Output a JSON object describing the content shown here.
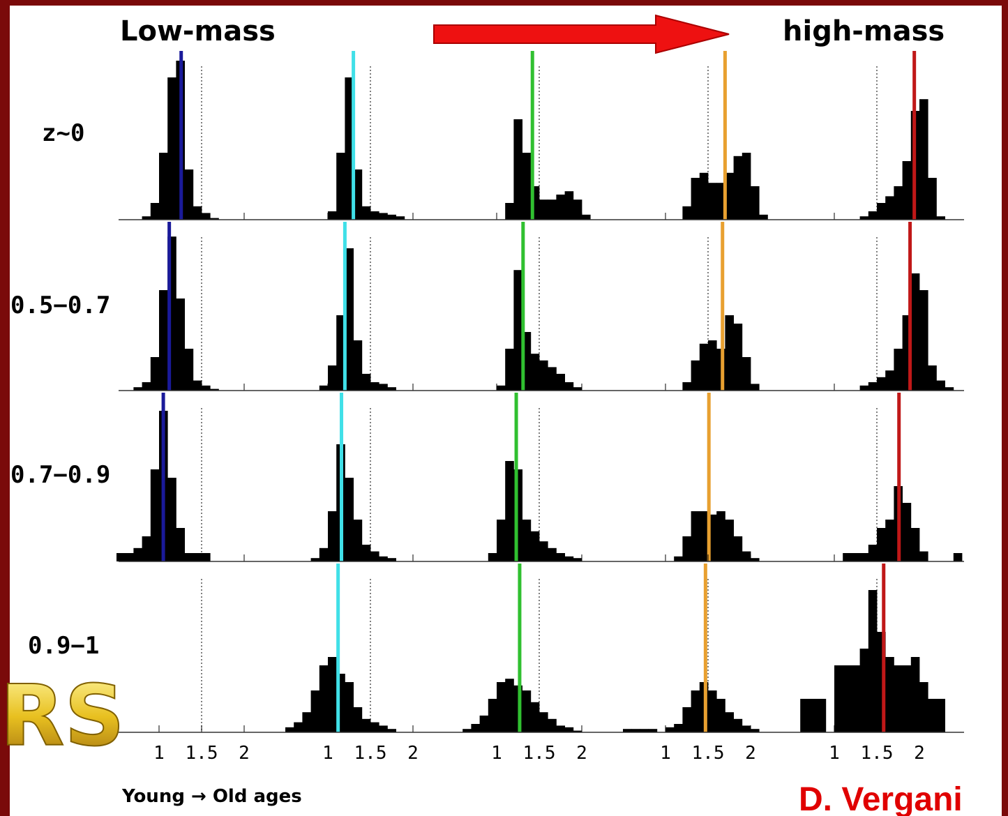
{
  "chart_data": {
    "type": "histogram",
    "left_label": "Low-mass",
    "right_label": "high-mass",
    "xlabel": "Young → Old ages",
    "credit": "D. Vergani",
    "logo": "RS",
    "row_labels": [
      "z~0",
      "0.5−0.7",
      "0.7−0.9",
      "0.9−1"
    ],
    "xlim": [
      0.5,
      2.5
    ],
    "xticks": [
      1,
      1.5,
      2
    ],
    "ylim": [
      0,
      100
    ],
    "reference_line": 1.5,
    "bar_color": "#000000",
    "bins": [
      0.5,
      0.6,
      0.7,
      0.8,
      0.9,
      1.0,
      1.1,
      1.2,
      1.3,
      1.4,
      1.5,
      1.6,
      1.7,
      1.8,
      1.9,
      2.0,
      2.1,
      2.2,
      2.3,
      2.4,
      2.5
    ],
    "columns": [
      {
        "color": "#1a1a9a",
        "medians": [
          1.26,
          1.12,
          1.05,
          null
        ],
        "histograms": [
          [
            0,
            0,
            0,
            2,
            10,
            40,
            85,
            95,
            30,
            8,
            4,
            1,
            0,
            0,
            0,
            0,
            0,
            0,
            0,
            0
          ],
          [
            0,
            0,
            2,
            5,
            20,
            60,
            92,
            55,
            25,
            6,
            3,
            1,
            0,
            0,
            0,
            0,
            0,
            0,
            0,
            0
          ],
          [
            5,
            5,
            8,
            15,
            55,
            90,
            50,
            20,
            5,
            5,
            5,
            0,
            0,
            0,
            0,
            0,
            0,
            0,
            0,
            0
          ],
          [
            0,
            0,
            0,
            0,
            0,
            0,
            0,
            0,
            0,
            0,
            0,
            0,
            0,
            0,
            0,
            0,
            0,
            0,
            0,
            0
          ]
        ]
      },
      {
        "color": "#40e0e8",
        "medians": [
          1.3,
          1.2,
          1.16,
          1.12
        ],
        "histograms": [
          [
            0,
            0,
            0,
            0,
            0,
            5,
            40,
            85,
            30,
            8,
            5,
            4,
            3,
            2,
            0,
            0,
            0,
            0,
            0,
            0
          ],
          [
            0,
            0,
            0,
            0,
            3,
            15,
            45,
            85,
            30,
            10,
            5,
            4,
            2,
            0,
            0,
            0,
            0,
            0,
            0,
            0
          ],
          [
            0,
            0,
            0,
            2,
            8,
            30,
            70,
            50,
            25,
            10,
            6,
            3,
            2,
            0,
            0,
            0,
            0,
            0,
            0,
            0
          ],
          [
            3,
            6,
            12,
            25,
            40,
            45,
            35,
            30,
            15,
            8,
            6,
            4,
            2,
            0,
            0,
            0,
            0,
            0,
            0,
            0
          ]
        ]
      },
      {
        "color": "#30c030",
        "medians": [
          1.42,
          1.31,
          1.23,
          1.27
        ],
        "histograms": [
          [
            0,
            0,
            0,
            0,
            0,
            0,
            10,
            60,
            40,
            20,
            12,
            12,
            15,
            17,
            12,
            3,
            0,
            0,
            0,
            0
          ],
          [
            0,
            0,
            0,
            0,
            0,
            3,
            25,
            72,
            35,
            22,
            18,
            14,
            10,
            5,
            2,
            0,
            0,
            0,
            0,
            0
          ],
          [
            0,
            0,
            0,
            0,
            5,
            25,
            60,
            55,
            25,
            18,
            12,
            8,
            5,
            3,
            2,
            0,
            0,
            0,
            0,
            0
          ],
          [
            0,
            2,
            5,
            10,
            20,
            30,
            32,
            28,
            25,
            18,
            12,
            8,
            4,
            3,
            1,
            0,
            0,
            0,
            0,
            0
          ]
        ]
      },
      {
        "color": "#e8a030",
        "medians": [
          1.7,
          1.67,
          1.51,
          1.47
        ],
        "histograms": [
          [
            0,
            0,
            0,
            0,
            0,
            0,
            0,
            8,
            25,
            28,
            22,
            22,
            28,
            38,
            40,
            20,
            3,
            0,
            0,
            0
          ],
          [
            0,
            0,
            0,
            0,
            0,
            0,
            0,
            5,
            18,
            28,
            30,
            25,
            45,
            40,
            20,
            4,
            0,
            0,
            0,
            0
          ],
          [
            0,
            0,
            0,
            0,
            0,
            0,
            3,
            15,
            30,
            30,
            28,
            30,
            25,
            15,
            6,
            2,
            0,
            0,
            0,
            0
          ],
          [
            2,
            2,
            2,
            2,
            0,
            3,
            5,
            15,
            25,
            30,
            25,
            20,
            12,
            8,
            4,
            2,
            0,
            0,
            0,
            0
          ]
        ]
      },
      {
        "color": "#c01818",
        "medians": [
          1.94,
          1.89,
          1.76,
          1.58
        ],
        "histograms": [
          [
            0,
            0,
            0,
            0,
            0,
            0,
            0,
            0,
            2,
            5,
            10,
            14,
            20,
            35,
            65,
            72,
            25,
            2,
            0,
            0
          ],
          [
            0,
            0,
            0,
            0,
            0,
            0,
            0,
            0,
            3,
            5,
            8,
            12,
            25,
            45,
            70,
            60,
            15,
            6,
            2,
            0
          ],
          [
            0,
            0,
            0,
            0,
            0,
            0,
            5,
            5,
            5,
            10,
            20,
            25,
            45,
            35,
            20,
            6,
            0,
            0,
            0,
            5
          ],
          [
            0,
            20,
            20,
            20,
            0,
            40,
            40,
            40,
            50,
            85,
            60,
            45,
            40,
            40,
            45,
            30,
            20,
            20,
            0,
            0
          ]
        ]
      }
    ]
  }
}
